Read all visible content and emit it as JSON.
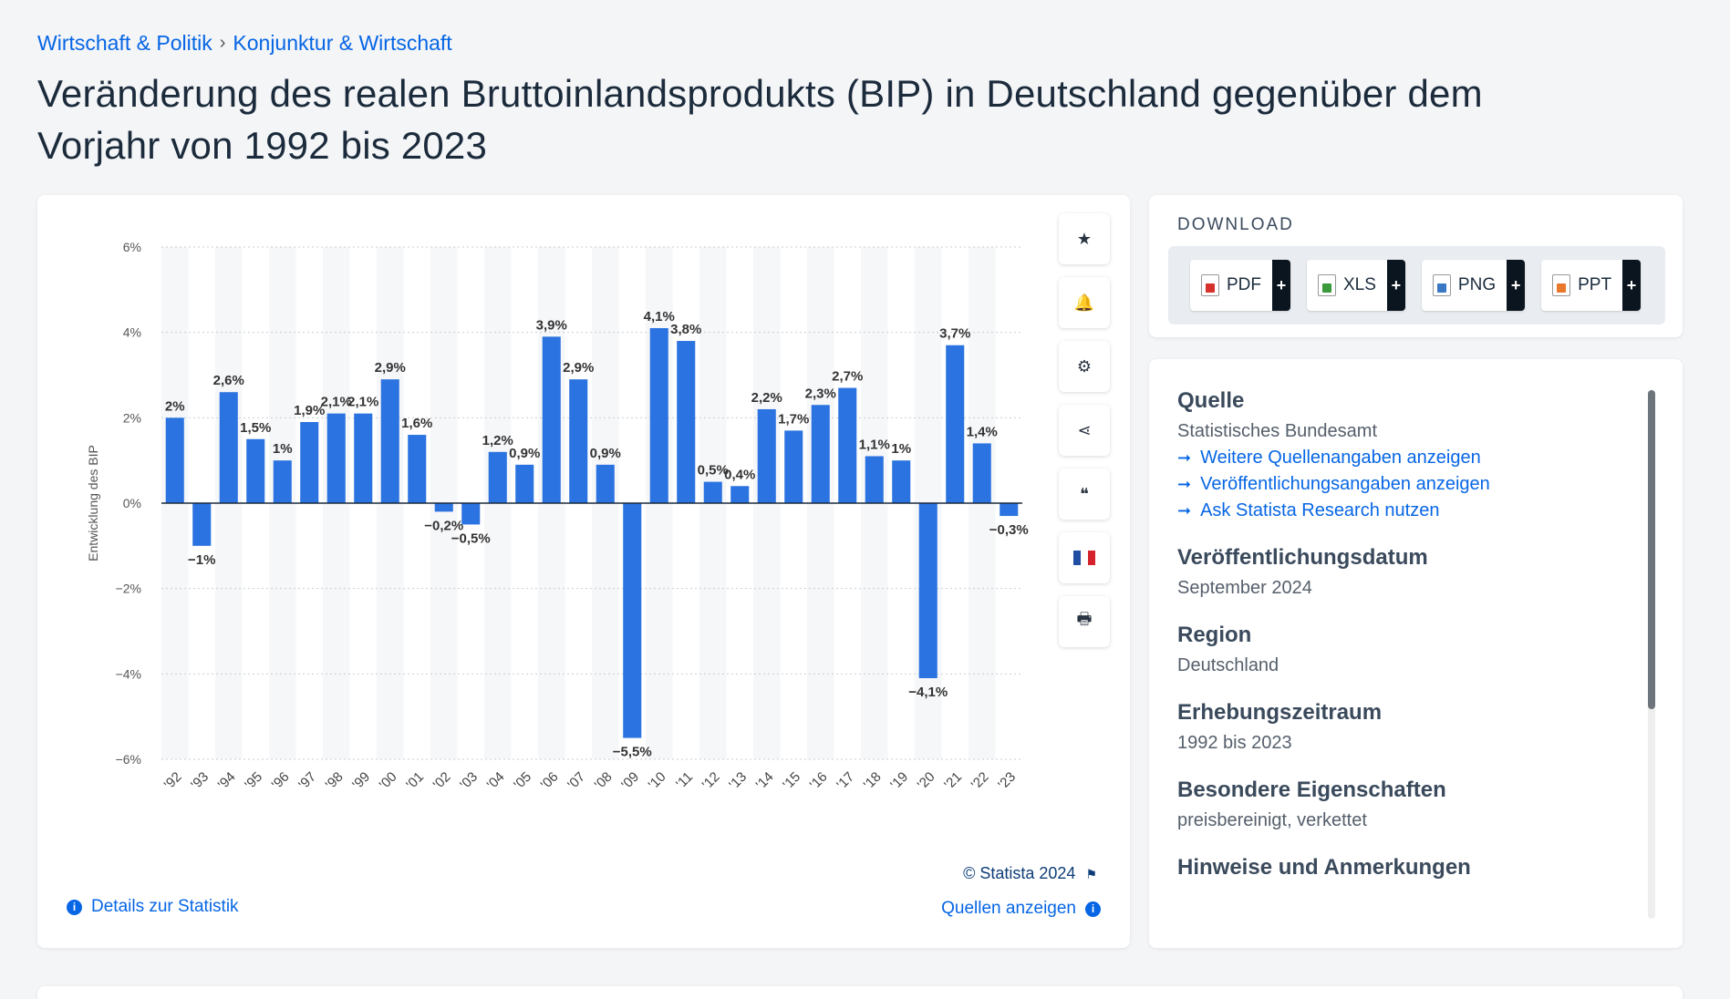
{
  "breadcrumb": {
    "item1": "Wirtschaft & Politik",
    "separator": "›",
    "item2": "Konjunktur & Wirtschaft"
  },
  "title": "Veränderung des realen Bruttoinlandsprodukts (BIP) in Deutschland gegenüber dem Vorjahr von 1992 bis 2023",
  "chart_data": {
    "type": "bar",
    "title": "",
    "xlabel": "",
    "ylabel": "Entwicklung des BIP",
    "categories": [
      "'92",
      "'93",
      "'94",
      "'95",
      "'96",
      "'97",
      "'98",
      "'99",
      "'00",
      "'01",
      "'02",
      "'03",
      "'04",
      "'05",
      "'06",
      "'07",
      "'08",
      "'09",
      "'10",
      "'11",
      "'12",
      "'13",
      "'14",
      "'15",
      "'16",
      "'17",
      "'18",
      "'19",
      "'20",
      "'21",
      "'22",
      "'23"
    ],
    "values": [
      2,
      -1,
      2.6,
      1.5,
      1,
      1.9,
      2.1,
      2.1,
      2.9,
      1.6,
      -0.2,
      -0.5,
      1.2,
      0.9,
      3.9,
      2.9,
      0.9,
      -5.5,
      4.1,
      3.8,
      0.5,
      0.4,
      2.2,
      1.7,
      2.3,
      2.7,
      1.1,
      1,
      -4.1,
      3.7,
      1.4,
      -0.3
    ],
    "data_labels": [
      "2%",
      "−1%",
      "2,6%",
      "1,5%",
      "1%",
      "1,9%",
      "2,1%",
      "2,1%",
      "2,9%",
      "1,6%",
      "−0,2%",
      "−0,5%",
      "1,2%",
      "0,9%",
      "3,9%",
      "2,9%",
      "0,9%",
      "−5,5%",
      "4,1%",
      "3,8%",
      "0,5%",
      "0,4%",
      "2,2%",
      "1,7%",
      "2,3%",
      "2,7%",
      "1,1%",
      "1%",
      "−4,1%",
      "3,7%",
      "1,4%",
      "−0,3%"
    ],
    "yticks": [
      6,
      4,
      2,
      0,
      -2,
      -4,
      -6
    ],
    "ytick_labels": [
      "6%",
      "4%",
      "2%",
      "0%",
      "−2%",
      "−4%",
      "−6%"
    ],
    "ylim": [
      -6,
      6
    ],
    "grid": true,
    "bar_color": "#2b73e0"
  },
  "tools": [
    {
      "name": "favorite-star-icon",
      "glyph": "★"
    },
    {
      "name": "notification-bell-icon",
      "glyph": "🔔"
    },
    {
      "name": "settings-gear-icon",
      "glyph": "⚙"
    },
    {
      "name": "share-icon",
      "glyph": "⋖"
    },
    {
      "name": "quote-icon",
      "glyph": "❝"
    },
    {
      "name": "french-flag-icon",
      "glyph": ""
    },
    {
      "name": "print-icon",
      "glyph": "🖶"
    }
  ],
  "copyright": "© Statista 2024",
  "details_link": "Details zur Statistik",
  "sources_link": "Quellen anzeigen",
  "download": {
    "title": "DOWNLOAD",
    "buttons": [
      {
        "label": "PDF",
        "color": "#d6322b"
      },
      {
        "label": "XLS",
        "color": "#3a9a3c"
      },
      {
        "label": "PNG",
        "color": "#3b78c4"
      },
      {
        "label": "PPT",
        "color": "#e9772c"
      }
    ],
    "plus": "+"
  },
  "info": {
    "source_label": "Quelle",
    "source_value": "Statistisches Bundesamt",
    "links": [
      "Weitere Quellenangaben anzeigen",
      "Veröffentlichungsangaben anzeigen",
      "Ask Statista Research nutzen"
    ],
    "pub_date_label": "Veröffentlichungsdatum",
    "pub_date_value": "September 2024",
    "region_label": "Region",
    "region_value": "Deutschland",
    "period_label": "Erhebungszeitraum",
    "period_value": "1992 bis 2023",
    "props_label": "Besondere Eigenschaften",
    "props_value": "preisbereinigt, verkettet",
    "notes_label": "Hinweise und Anmerkungen"
  }
}
